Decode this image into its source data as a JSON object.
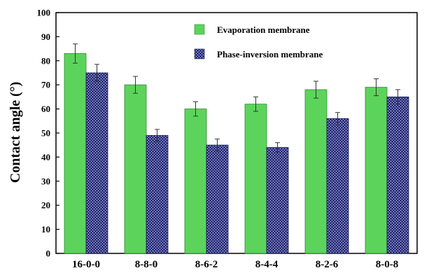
{
  "chart_data": {
    "type": "bar",
    "title": "",
    "xlabel": "",
    "ylabel": "Contact angle (°)",
    "ylim": [
      0,
      100
    ],
    "yticks": [
      0,
      10,
      20,
      30,
      40,
      50,
      60,
      70,
      80,
      90,
      100
    ],
    "categories": [
      "16-0-0",
      "8-8-0",
      "8-6-2",
      "8-4-4",
      "8-2-6",
      "8-0-8"
    ],
    "series": [
      {
        "name": "Evaporation membrane",
        "values": [
          83,
          70,
          60,
          62,
          68,
          69
        ],
        "errors": [
          4,
          3.5,
          3,
          3,
          3.5,
          3.5
        ],
        "color": "#5cd45c",
        "pattern": "solid"
      },
      {
        "name": "Phase-inversion membrane",
        "values": [
          75,
          49,
          45,
          44,
          56,
          65
        ],
        "errors": [
          3.5,
          2.5,
          2.5,
          2,
          2.5,
          3
        ],
        "color": "#2b2f7a",
        "pattern": "crosshatch"
      }
    ],
    "legend_position": "top-right",
    "grid": false
  }
}
